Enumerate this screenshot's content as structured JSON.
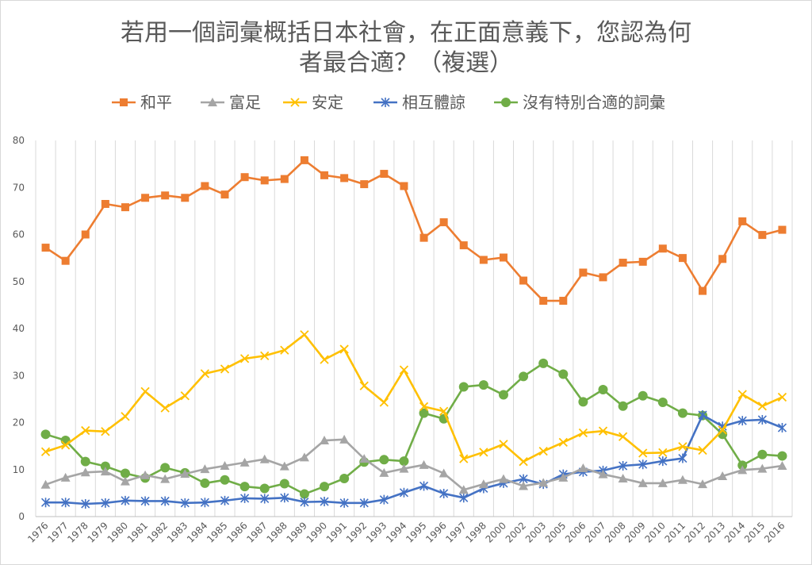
{
  "chart_data": {
    "type": "line",
    "title_line1": "若用一個詞彙概括日本社會，在正面意義下，您認為何",
    "title_line2": "者最合適？（複選）",
    "ylim": [
      0,
      80
    ],
    "yticks": [
      "0",
      "10",
      "20",
      "30",
      "40",
      "50",
      "60",
      "70",
      "80"
    ],
    "categories": [
      "1976",
      "1977",
      "1978",
      "1979",
      "1980",
      "1981",
      "1982",
      "1983",
      "1984",
      "1985",
      "1986",
      "1987",
      "1988",
      "1989",
      "1990",
      "1991",
      "1992",
      "1993",
      "1994",
      "1995",
      "1996",
      "1997",
      "1998",
      "2000",
      "2002",
      "2003",
      "2005",
      "2006",
      "2007",
      "2008",
      "2009",
      "2010",
      "2011",
      "2012",
      "2013",
      "2014",
      "2015",
      "2016"
    ],
    "legend_position": "top",
    "series": [
      {
        "name": "和平",
        "color": "#ED7D31",
        "marker": "square",
        "values": [
          57.2,
          54.4,
          60.0,
          66.5,
          65.8,
          67.8,
          68.3,
          67.8,
          70.3,
          68.5,
          72.2,
          71.5,
          71.8,
          75.8,
          72.6,
          72.0,
          70.7,
          72.9,
          70.3,
          59.3,
          62.6,
          57.7,
          54.6,
          55.1,
          50.2,
          45.9,
          45.9,
          51.9,
          50.9,
          54.0,
          54.2,
          57.0,
          55.0,
          48.0,
          54.8,
          62.8,
          59.9,
          61.0
        ]
      },
      {
        "name": "富足",
        "color": "#A5A5A5",
        "marker": "triangle",
        "values": [
          6.8,
          8.3,
          9.4,
          9.6,
          7.5,
          8.8,
          8.0,
          9.1,
          10.1,
          10.8,
          11.5,
          12.2,
          10.7,
          12.6,
          16.2,
          16.4,
          12.3,
          9.3,
          10.2,
          11.0,
          9.2,
          5.7,
          6.9,
          8.0,
          6.5,
          7.2,
          8.3,
          10.3,
          9.0,
          8.1,
          7.1,
          7.1,
          7.8,
          6.9,
          8.6,
          9.9,
          10.2,
          10.8
        ]
      },
      {
        "name": "安定",
        "color": "#FFC000",
        "marker": "x",
        "values": [
          13.8,
          15.2,
          18.3,
          18.1,
          21.3,
          26.6,
          23.1,
          25.7,
          30.4,
          31.4,
          33.6,
          34.2,
          35.4,
          38.7,
          33.4,
          35.6,
          27.8,
          24.3,
          31.2,
          23.4,
          22.4,
          12.3,
          13.7,
          15.4,
          11.7,
          13.9,
          15.8,
          17.8,
          18.2,
          17.0,
          13.5,
          13.6,
          14.9,
          14.1,
          18.4,
          26.0,
          23.5,
          25.4
        ]
      },
      {
        "name": "相互體諒",
        "color": "#4472C4",
        "marker": "star",
        "values": [
          3.0,
          3.0,
          2.7,
          2.9,
          3.4,
          3.3,
          3.3,
          2.9,
          3.0,
          3.4,
          3.9,
          3.8,
          4.0,
          3.1,
          3.2,
          2.9,
          2.9,
          3.6,
          5.1,
          6.5,
          4.9,
          4.0,
          6.0,
          7.1,
          8.0,
          6.9,
          9.0,
          9.5,
          9.8,
          10.8,
          11.1,
          11.8,
          12.4,
          21.6,
          19.2,
          20.4,
          20.6,
          18.9
        ]
      },
      {
        "name": "沒有特別合適的詞彙",
        "color": "#70AD47",
        "marker": "circle",
        "values": [
          17.5,
          16.2,
          11.7,
          10.7,
          9.2,
          8.2,
          10.4,
          9.3,
          7.1,
          7.8,
          6.4,
          6.0,
          7.0,
          4.8,
          6.4,
          8.1,
          11.6,
          12.1,
          11.8,
          22.0,
          20.8,
          27.6,
          28.0,
          25.9,
          29.8,
          32.6,
          30.3,
          24.4,
          27.0,
          23.5,
          25.7,
          24.3,
          22.0,
          21.5,
          17.5,
          10.9,
          13.2,
          12.9
        ]
      }
    ]
  }
}
